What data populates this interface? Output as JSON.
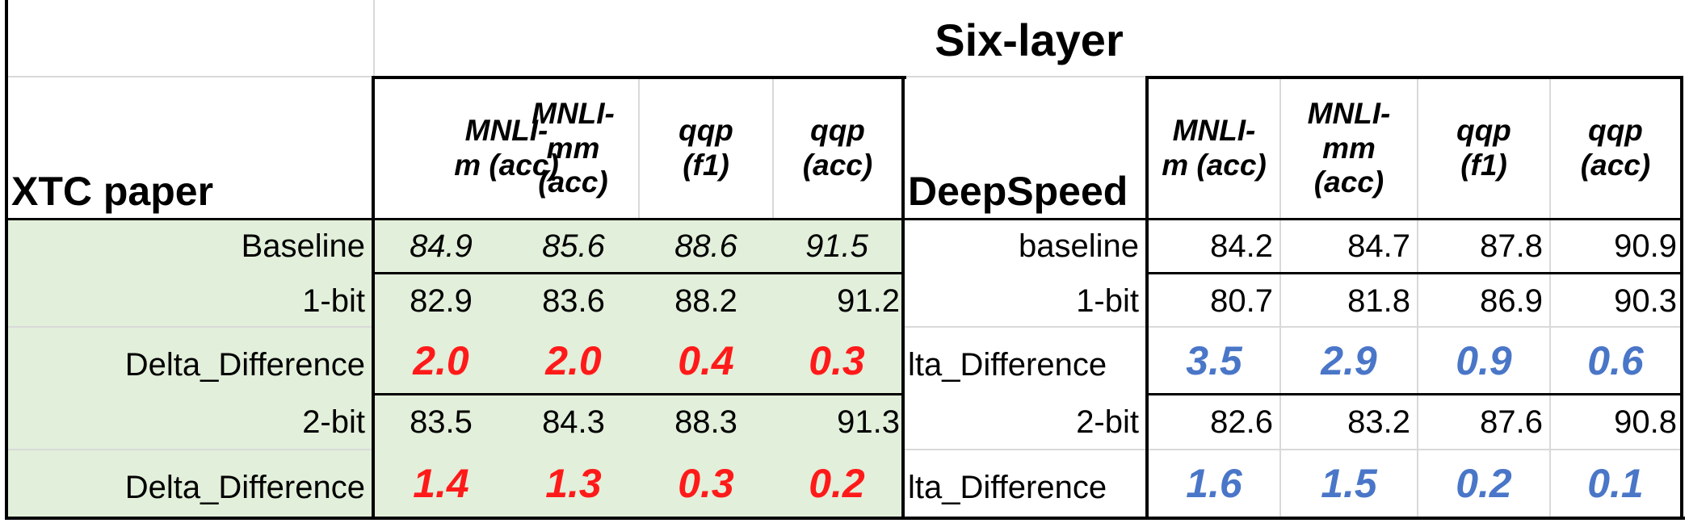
{
  "title": "Six-layer",
  "left": {
    "section": "XTC paper",
    "headers": [
      [
        "MNLI-",
        "m (acc)"
      ],
      [
        "MNLI-",
        "mm",
        "(acc)"
      ],
      [
        "qqp",
        "(f1)"
      ],
      [
        "qqp",
        "(acc)"
      ]
    ],
    "rows": [
      {
        "label": "Baseline",
        "values": [
          "84.9",
          "85.6",
          "88.6",
          "91.5"
        ]
      },
      {
        "label": "1-bit",
        "values": [
          "82.9",
          "83.6",
          "88.2",
          "91.2"
        ]
      },
      {
        "label": "Delta_Difference",
        "values": [
          "2.0",
          "2.0",
          "0.4",
          "0.3"
        ]
      },
      {
        "label": "2-bit",
        "values": [
          "83.5",
          "84.3",
          "88.3",
          "91.3"
        ]
      },
      {
        "label": "Delta_Difference",
        "values": [
          "1.4",
          "1.3",
          "0.3",
          "0.2"
        ]
      }
    ]
  },
  "right": {
    "section": "DeepSpeed",
    "headers": [
      [
        "MNLI-",
        "m (acc)"
      ],
      [
        "MNLI-",
        "mm",
        "(acc)"
      ],
      [
        "qqp",
        "(f1)"
      ],
      [
        "qqp",
        "(acc)"
      ]
    ],
    "rows": [
      {
        "label": "baseline",
        "values": [
          "84.2",
          "84.7",
          "87.8",
          "90.9"
        ]
      },
      {
        "label": "1-bit",
        "values": [
          "80.7",
          "81.8",
          "86.9",
          "90.3"
        ]
      },
      {
        "label": "lta_Difference",
        "values": [
          "3.5",
          "2.9",
          "0.9",
          "0.6"
        ]
      },
      {
        "label": "2-bit",
        "values": [
          "82.6",
          "83.2",
          "87.6",
          "90.8"
        ]
      },
      {
        "label": "lta_Difference",
        "values": [
          "1.6",
          "1.5",
          "0.2",
          "0.1"
        ]
      }
    ]
  },
  "colors": {
    "highlight_fill": "#e2efda",
    "left_delta_text": "#ff1a1a",
    "right_delta_text": "#4a76c8",
    "gridline": "#d9d9d9",
    "border": "#000000"
  }
}
